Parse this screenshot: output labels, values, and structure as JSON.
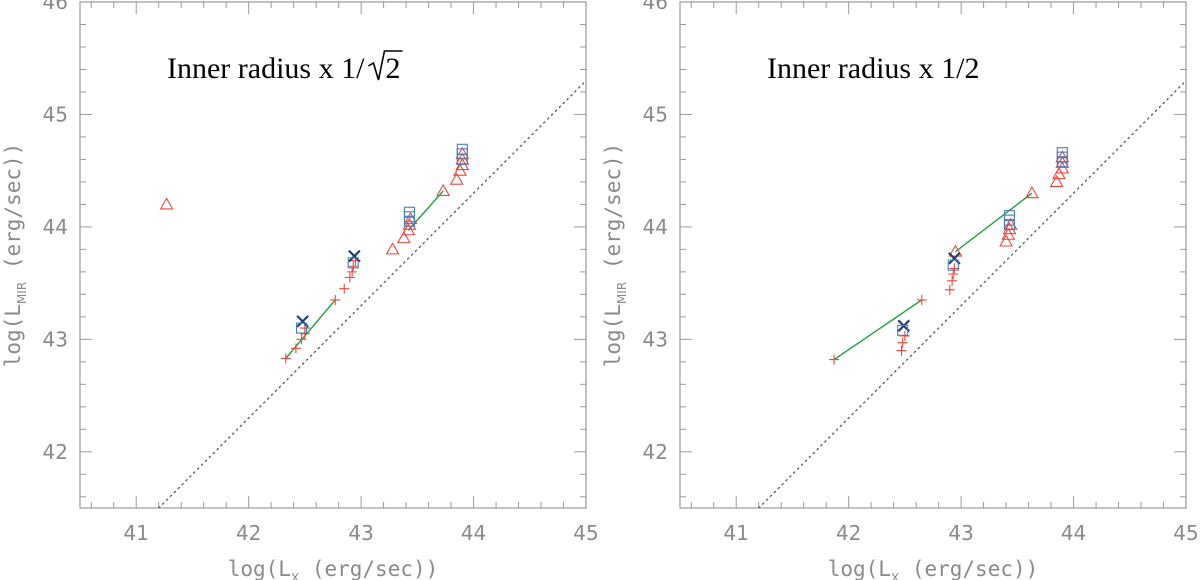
{
  "chart_data": [
    {
      "type": "scatter",
      "annotation": "Inner radius x 1/",
      "annotation_sqrt": "2",
      "xlabel": "log(L_X (erg/sec))",
      "ylabel": "log(L_MIR (erg/sec))",
      "xlabel_parts": {
        "pre": "log(L",
        "sub": "X",
        "post": " (erg/sec))"
      },
      "ylabel_parts": {
        "pre": "log(L",
        "sub": "MIR",
        "post": " (erg/sec))"
      },
      "xlim": [
        40.5,
        45
      ],
      "ylim": [
        41.5,
        46
      ],
      "xticks": [
        "41",
        "42",
        "43",
        "44",
        "45"
      ],
      "yticks": [
        "42",
        "43",
        "44",
        "45",
        "46"
      ],
      "reference_line": {
        "x": [
          41.2,
          45
        ],
        "y": [
          41.5,
          45.3
        ]
      },
      "series": [
        {
          "name": "plus",
          "marker": "plus",
          "color": "#e8473f",
          "points": [
            [
              42.33,
              42.83
            ],
            [
              42.42,
              42.92
            ],
            [
              42.47,
              43.0
            ],
            [
              42.5,
              43.05
            ],
            [
              42.5,
              43.1
            ],
            [
              42.77,
              43.35
            ],
            [
              42.85,
              43.45
            ],
            [
              42.9,
              43.55
            ],
            [
              42.92,
              43.6
            ],
            [
              42.93,
              43.65
            ],
            [
              42.95,
              43.7
            ]
          ]
        },
        {
          "name": "triangle",
          "marker": "triangle",
          "color": "#e8473f",
          "points": [
            [
              41.27,
              44.2
            ],
            [
              43.28,
              43.8
            ],
            [
              43.38,
              43.9
            ],
            [
              43.42,
              43.97
            ],
            [
              43.43,
              44.02
            ],
            [
              43.44,
              44.07
            ],
            [
              43.73,
              44.32
            ],
            [
              43.85,
              44.42
            ],
            [
              43.88,
              44.5
            ],
            [
              43.9,
              44.55
            ],
            [
              43.9,
              44.6
            ],
            [
              43.9,
              44.65
            ]
          ]
        },
        {
          "name": "cross",
          "marker": "cross",
          "color": "#1f3f6e",
          "points": [
            [
              42.48,
              43.16
            ],
            [
              42.94,
              43.74
            ]
          ]
        },
        {
          "name": "square",
          "marker": "square",
          "color": "#4a7fb5",
          "points": [
            [
              42.47,
              43.1
            ],
            [
              42.93,
              43.68
            ],
            [
              43.43,
              44.05
            ],
            [
              43.43,
              44.09
            ],
            [
              43.43,
              44.13
            ],
            [
              43.9,
              44.6
            ],
            [
              43.9,
              44.65
            ],
            [
              43.9,
              44.69
            ]
          ]
        }
      ],
      "lines": [
        {
          "name": "fit-1",
          "color": "#1e9e3a",
          "x": [
            42.33,
            42.77
          ],
          "y": [
            42.83,
            43.35
          ]
        },
        {
          "name": "fit-2",
          "color": "#1e9e3a",
          "x": [
            43.42,
            43.73
          ],
          "y": [
            43.97,
            44.32
          ]
        }
      ]
    },
    {
      "type": "scatter",
      "annotation": "Inner radius x 1/2",
      "annotation_sqrt": "",
      "xlabel": "log(L_X (erg/sec))",
      "ylabel": "log(L_MIR (erg/sec))",
      "xlabel_parts": {
        "pre": "log(L",
        "sub": "X",
        "post": " (erg/sec))"
      },
      "ylabel_parts": {
        "pre": "log(L",
        "sub": "MIR",
        "post": " (erg/sec))"
      },
      "xlim": [
        40.5,
        45
      ],
      "ylim": [
        41.5,
        46
      ],
      "xticks": [
        "41",
        "42",
        "43",
        "44",
        "45"
      ],
      "yticks": [
        "42",
        "43",
        "44",
        "45",
        "46"
      ],
      "reference_line": {
        "x": [
          41.2,
          45
        ],
        "y": [
          41.5,
          45.3
        ]
      },
      "series": [
        {
          "name": "plus",
          "marker": "plus",
          "color": "#e8473f",
          "points": [
            [
              41.87,
              42.82
            ],
            [
              42.47,
              42.9
            ],
            [
              42.48,
              42.97
            ],
            [
              42.5,
              43.03
            ],
            [
              42.65,
              43.35
            ],
            [
              42.9,
              43.44
            ],
            [
              42.92,
              43.52
            ],
            [
              42.93,
              43.58
            ],
            [
              42.94,
              43.63
            ]
          ]
        },
        {
          "name": "triangle",
          "marker": "triangle",
          "color": "#e8473f",
          "points": [
            [
              42.95,
              43.78
            ],
            [
              43.4,
              43.87
            ],
            [
              43.42,
              43.93
            ],
            [
              43.43,
              43.98
            ],
            [
              43.44,
              44.02
            ],
            [
              43.63,
              44.3
            ],
            [
              43.85,
              44.4
            ],
            [
              43.87,
              44.47
            ],
            [
              43.9,
              44.52
            ],
            [
              43.9,
              44.57
            ],
            [
              43.9,
              44.62
            ]
          ]
        },
        {
          "name": "cross",
          "marker": "cross",
          "color": "#1f3f6e",
          "points": [
            [
              42.49,
              43.12
            ],
            [
              42.94,
              43.72
            ]
          ]
        },
        {
          "name": "square",
          "marker": "square",
          "color": "#4a7fb5",
          "points": [
            [
              42.48,
              43.08
            ],
            [
              42.93,
              43.66
            ],
            [
              43.43,
              44.02
            ],
            [
              43.43,
              44.06
            ],
            [
              43.43,
              44.1
            ],
            [
              43.9,
              44.58
            ],
            [
              43.9,
              44.62
            ],
            [
              43.9,
              44.66
            ]
          ]
        }
      ],
      "lines": [
        {
          "name": "fit-1",
          "color": "#1e9e3a",
          "x": [
            41.87,
            42.65
          ],
          "y": [
            42.82,
            43.35
          ]
        },
        {
          "name": "fit-2",
          "color": "#1e9e3a",
          "x": [
            42.95,
            43.63
          ],
          "y": [
            43.78,
            44.3
          ]
        }
      ]
    }
  ]
}
